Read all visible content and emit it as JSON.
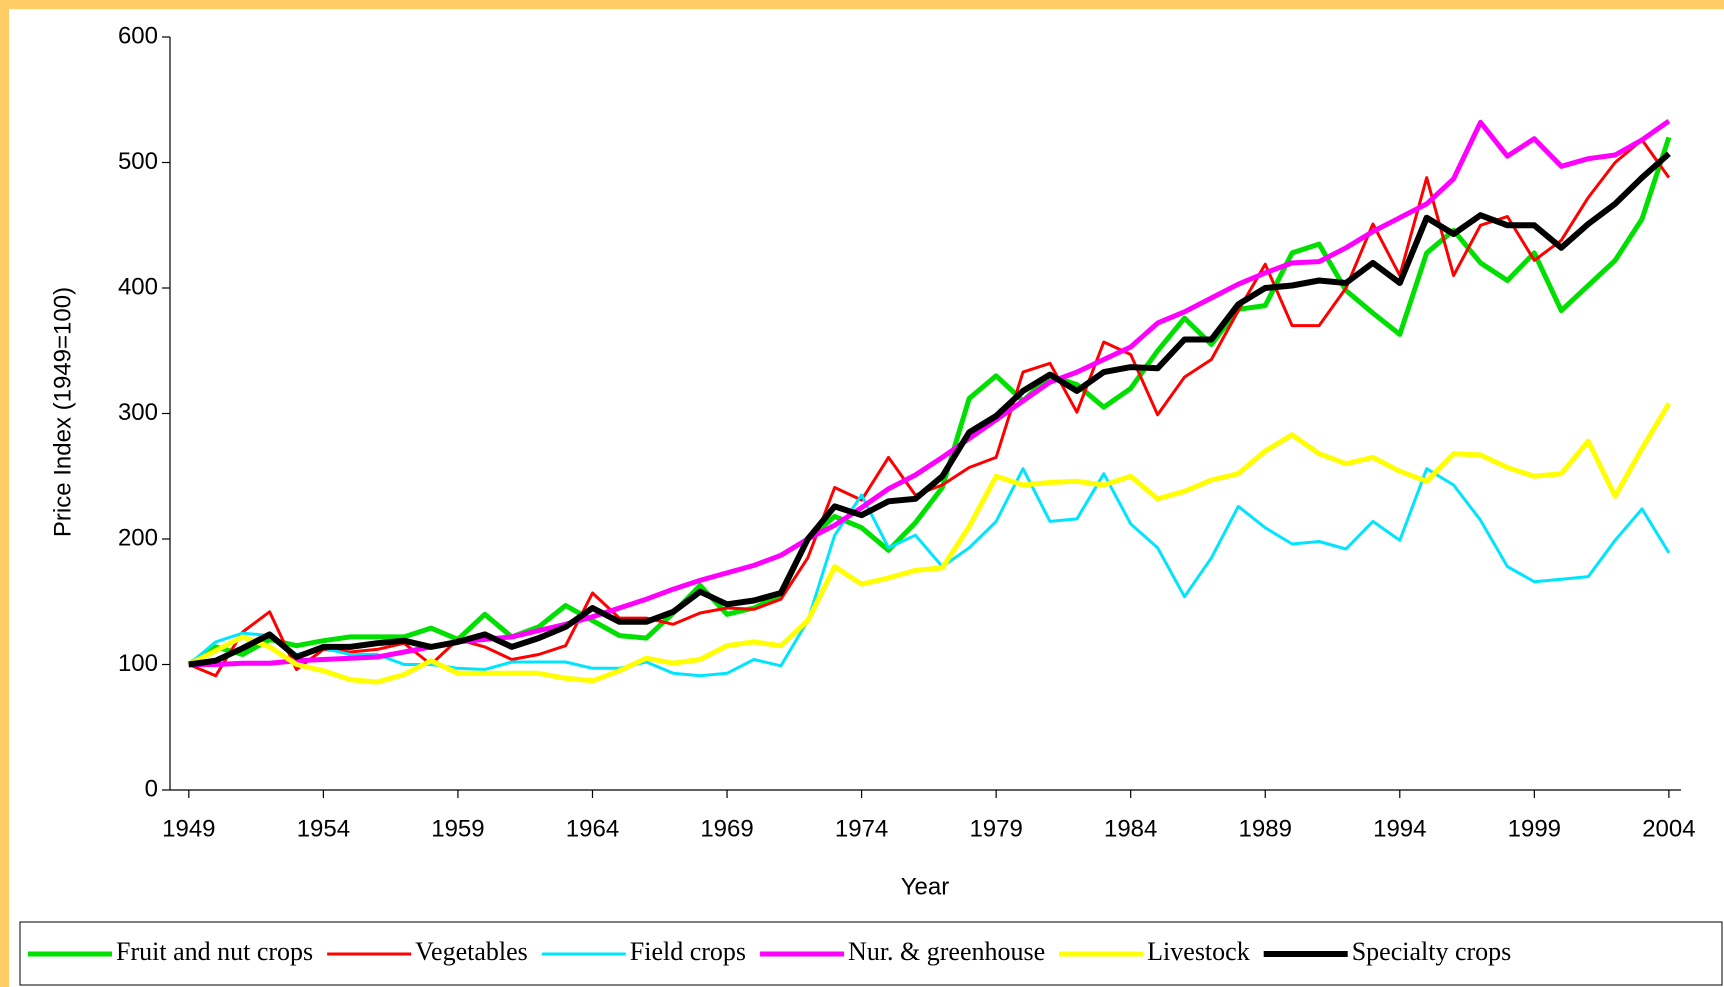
{
  "chart_data": {
    "type": "line",
    "x_label": "Year",
    "y_label": "Price Index (1949=100)",
    "x": [
      1949,
      1950,
      1951,
      1952,
      1953,
      1954,
      1955,
      1956,
      1957,
      1958,
      1959,
      1960,
      1961,
      1962,
      1963,
      1964,
      1965,
      1966,
      1967,
      1968,
      1969,
      1970,
      1971,
      1972,
      1973,
      1974,
      1975,
      1976,
      1977,
      1978,
      1979,
      1980,
      1981,
      1982,
      1983,
      1984,
      1985,
      1986,
      1987,
      1988,
      1989,
      1990,
      1991,
      1992,
      1993,
      1994,
      1995,
      1996,
      1997,
      1998,
      1999,
      2000,
      2001,
      2002,
      2003,
      2004
    ],
    "xlim": [
      1948.3,
      2004.45
    ],
    "xticks": [
      1949,
      1954,
      1959,
      1964,
      1969,
      1974,
      1979,
      1984,
      1989,
      1994,
      1999,
      2004
    ],
    "ylim": [
      0,
      600
    ],
    "yticks": [
      0,
      100,
      200,
      300,
      400,
      500,
      600
    ],
    "series": [
      {
        "name": "Fruit and nut crops",
        "color": "#00e000",
        "width": 5,
        "values": [
          100,
          114,
          108,
          120,
          115,
          119,
          122,
          122,
          122,
          129,
          120,
          140,
          122,
          130,
          147,
          135,
          123,
          121,
          141,
          163,
          140,
          145,
          155,
          200,
          218,
          209,
          191,
          213,
          241,
          312,
          330,
          310,
          330,
          323,
          305,
          320,
          350,
          376,
          355,
          383,
          386,
          428,
          435,
          398,
          380,
          363,
          428,
          446,
          420,
          406,
          428,
          382,
          402,
          422,
          455,
          520
        ]
      },
      {
        "name": "Vegetables",
        "color": "#ff0000",
        "width": 3,
        "values": [
          100,
          91,
          126,
          142,
          96,
          112,
          110,
          112,
          117,
          100,
          120,
          114,
          104,
          108,
          115,
          157,
          137,
          137,
          132,
          141,
          145,
          144,
          152,
          185,
          241,
          231,
          265,
          235,
          243,
          257,
          265,
          333,
          340,
          301,
          357,
          347,
          299,
          329,
          343,
          382,
          419,
          370,
          370,
          400,
          451,
          410,
          488,
          410,
          450,
          457,
          422,
          438,
          472,
          500,
          518,
          488
        ]
      },
      {
        "name": "Field crops",
        "color": "#00e5ff",
        "width": 3,
        "values": [
          100,
          118,
          125,
          123,
          108,
          113,
          108,
          108,
          100,
          100,
          97,
          96,
          102,
          102,
          102,
          97,
          97,
          102,
          93,
          91,
          93,
          104,
          99,
          135,
          203,
          235,
          193,
          203,
          178,
          193,
          214,
          256,
          214,
          216,
          252,
          212,
          193,
          154,
          185,
          226,
          209,
          196,
          198,
          192,
          214,
          199,
          256,
          243,
          215,
          178,
          166,
          168,
          170,
          199,
          224,
          189
        ]
      },
      {
        "name": "Nur. & greenhouse",
        "color": "#ff00ff",
        "width": 5,
        "values": [
          100,
          100,
          101,
          101,
          103,
          104,
          105,
          106,
          110,
          114,
          118,
          120,
          122,
          127,
          132,
          138,
          145,
          152,
          160,
          167,
          173,
          179,
          187,
          200,
          211,
          225,
          240,
          251,
          265,
          280,
          295,
          310,
          325,
          333,
          343,
          353,
          372,
          381,
          392,
          403,
          412,
          420,
          421,
          432,
          445,
          456,
          467,
          487,
          532,
          505,
          519,
          497,
          503,
          506,
          518,
          533
        ]
      },
      {
        "name": "Livestock",
        "color": "#ffff00",
        "width": 5,
        "values": [
          100,
          111,
          122,
          114,
          100,
          95,
          88,
          86,
          92,
          103,
          93,
          93,
          93,
          93,
          89,
          87,
          95,
          105,
          101,
          104,
          115,
          118,
          115,
          135,
          178,
          164,
          169,
          175,
          177,
          210,
          250,
          243,
          245,
          246,
          243,
          250,
          232,
          238,
          247,
          252,
          270,
          283,
          268,
          260,
          265,
          254,
          246,
          268,
          267,
          257,
          250,
          252,
          278,
          234,
          272,
          308
        ]
      },
      {
        "name": "Specialty crops",
        "color": "#000000",
        "width": 6,
        "values": [
          100,
          103,
          113,
          124,
          106,
          114,
          114,
          117,
          119,
          114,
          118,
          124,
          114,
          121,
          130,
          145,
          134,
          134,
          142,
          158,
          148,
          151,
          157,
          200,
          226,
          219,
          230,
          232,
          250,
          285,
          298,
          318,
          331,
          318,
          333,
          337,
          336,
          359,
          359,
          387,
          400,
          402,
          406,
          404,
          420,
          404,
          456,
          443,
          458,
          450,
          450,
          432,
          451,
          467,
          488,
          507
        ]
      }
    ]
  }
}
